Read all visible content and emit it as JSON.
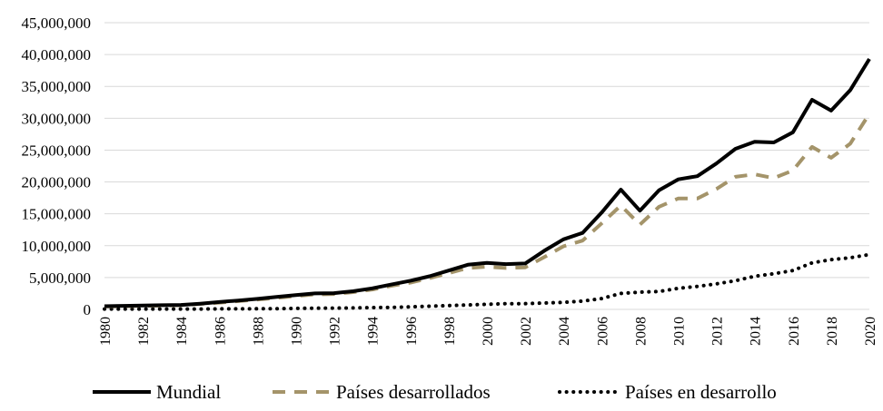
{
  "chart_data": {
    "type": "line",
    "title": "",
    "xlabel": "",
    "ylabel": "",
    "ylim": [
      0,
      45000000
    ],
    "yticks": [
      "0",
      "5,000,000",
      "10,000,000",
      "15,000,000",
      "20,000,000",
      "25,000,000",
      "30,000,000",
      "35,000,000",
      "40,000,000",
      "45,000,000"
    ],
    "xticks": [
      "1980",
      "1982",
      "1984",
      "1986",
      "1988",
      "1990",
      "1992",
      "1994",
      "1996",
      "1998",
      "2000",
      "2002",
      "2004",
      "2006",
      "2008",
      "2010",
      "2012",
      "2014",
      "2016",
      "2018",
      "2020"
    ],
    "grid": "horizontal",
    "legend_position": "bottom",
    "x": [
      1980,
      1981,
      1982,
      1983,
      1984,
      1985,
      1986,
      1987,
      1988,
      1989,
      1990,
      1991,
      1992,
      1993,
      1994,
      1995,
      1996,
      1997,
      1998,
      1999,
      2000,
      2001,
      2002,
      2003,
      2004,
      2005,
      2006,
      2007,
      2008,
      2009,
      2010,
      2011,
      2012,
      2013,
      2014,
      2015,
      2016,
      2017,
      2018,
      2019,
      2020
    ],
    "series": [
      {
        "name": "Mundial",
        "color": "#000000",
        "style": "solid",
        "values": [
          500000,
          550000,
          600000,
          650000,
          700000,
          900000,
          1150000,
          1400000,
          1650000,
          1950000,
          2250000,
          2500000,
          2550000,
          2850000,
          3300000,
          3900000,
          4500000,
          5200000,
          6100000,
          7000000,
          7300000,
          7100000,
          7200000,
          9200000,
          11000000,
          12000000,
          15200000,
          18800000,
          15500000,
          18700000,
          20400000,
          20900000,
          22900000,
          25200000,
          26300000,
          26200000,
          27800000,
          32900000,
          31200000,
          34400000,
          39300000
        ]
      },
      {
        "name": "Países desarrollados",
        "color": "#A4946A",
        "style": "dashed",
        "values": [
          450000,
          500000,
          550000,
          600000,
          650000,
          850000,
          1050000,
          1300000,
          1550000,
          1800000,
          2100000,
          2350000,
          2400000,
          2700000,
          3100000,
          3700000,
          4200000,
          4900000,
          5700000,
          6500000,
          6700000,
          6500000,
          6600000,
          8200000,
          9900000,
          10800000,
          13500000,
          16300000,
          13300000,
          16100000,
          17400000,
          17400000,
          18900000,
          20800000,
          21200000,
          20600000,
          21800000,
          25500000,
          23800000,
          26000000,
          30700000
        ]
      },
      {
        "name": "Países en desarrollo",
        "color": "#000000",
        "style": "dotted",
        "values": [
          50000,
          50000,
          50000,
          50000,
          50000,
          50000,
          80000,
          90000,
          100000,
          120000,
          150000,
          180000,
          200000,
          230000,
          280000,
          320000,
          400000,
          500000,
          600000,
          700000,
          800000,
          900000,
          900000,
          1000000,
          1100000,
          1300000,
          1700000,
          2500000,
          2700000,
          2800000,
          3300000,
          3600000,
          4000000,
          4500000,
          5200000,
          5600000,
          6100000,
          7300000,
          7800000,
          8100000,
          8600000
        ]
      }
    ]
  }
}
